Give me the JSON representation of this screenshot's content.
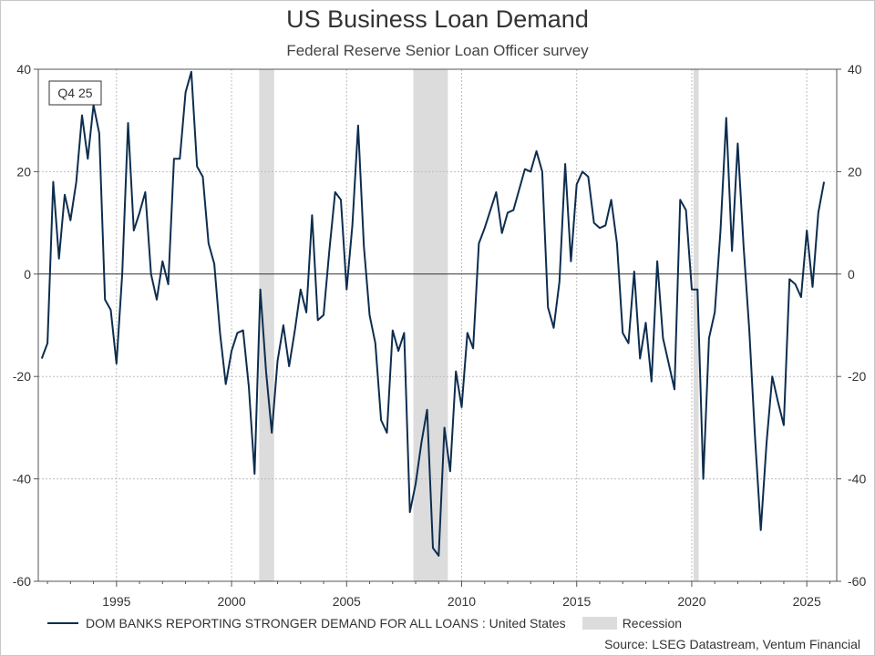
{
  "title": "US Business Loan Demand",
  "subtitle": "Federal Reserve Senior Loan Officer survey",
  "source": "Source: LSEG Datastream, Ventum Financial",
  "chart_data": {
    "type": "line",
    "title": "US Business Loan Demand",
    "subtitle": "Federal Reserve Senior Loan Officer survey",
    "xlabel": "",
    "ylabel": "",
    "xlim": [
      1991.6,
      2026.3
    ],
    "ylim": [
      -60,
      40
    ],
    "x_ticks": [
      1995,
      2000,
      2005,
      2010,
      2015,
      2020,
      2025
    ],
    "y_ticks": [
      40,
      20,
      0,
      -20,
      -40,
      -60
    ],
    "grid": true,
    "dual_y_axis": true,
    "legend_position": "bottom",
    "annotation": "Q4 25",
    "line_color": "#0d2d4f",
    "recession_color": "#dcdcdc",
    "series": [
      {
        "name": "DOM BANKS REPORTING STRONGER DEMAND FOR ALL LOANS : United States",
        "points": [
          [
            1991.75,
            -16.5
          ],
          [
            1992.0,
            -13.5
          ],
          [
            1992.25,
            18.0
          ],
          [
            1992.5,
            3.0
          ],
          [
            1992.75,
            15.5
          ],
          [
            1993.0,
            10.5
          ],
          [
            1993.25,
            18.0
          ],
          [
            1993.5,
            31.0
          ],
          [
            1993.75,
            22.5
          ],
          [
            1994.0,
            33.0
          ],
          [
            1994.25,
            27.5
          ],
          [
            1994.5,
            -5.0
          ],
          [
            1994.75,
            -7.0
          ],
          [
            1995.0,
            -17.5
          ],
          [
            1995.25,
            0.0
          ],
          [
            1995.5,
            29.5
          ],
          [
            1995.75,
            8.5
          ],
          [
            1996.0,
            12.0
          ],
          [
            1996.25,
            16.0
          ],
          [
            1996.5,
            0.0
          ],
          [
            1996.75,
            -5.0
          ],
          [
            1997.0,
            2.5
          ],
          [
            1997.25,
            -2.0
          ],
          [
            1997.5,
            22.5
          ],
          [
            1997.75,
            22.5
          ],
          [
            1998.0,
            35.5
          ],
          [
            1998.25,
            39.5
          ],
          [
            1998.5,
            21.0
          ],
          [
            1998.75,
            19.0
          ],
          [
            1999.0,
            6.0
          ],
          [
            1999.25,
            2.0
          ],
          [
            1999.5,
            -11.5
          ],
          [
            1999.75,
            -21.5
          ],
          [
            2000.0,
            -15.0
          ],
          [
            2000.25,
            -11.5
          ],
          [
            2000.5,
            -11.0
          ],
          [
            2000.75,
            -22.0
          ],
          [
            2001.0,
            -39.0
          ],
          [
            2001.25,
            -3.0
          ],
          [
            2001.5,
            -19.0
          ],
          [
            2001.75,
            -31.0
          ],
          [
            2002.0,
            -17.0
          ],
          [
            2002.25,
            -10.0
          ],
          [
            2002.5,
            -18.0
          ],
          [
            2002.75,
            -11.0
          ],
          [
            2003.0,
            -3.0
          ],
          [
            2003.25,
            -7.5
          ],
          [
            2003.5,
            11.5
          ],
          [
            2003.75,
            -9.0
          ],
          [
            2004.0,
            -8.0
          ],
          [
            2004.25,
            4.5
          ],
          [
            2004.5,
            16.0
          ],
          [
            2004.75,
            14.5
          ],
          [
            2005.0,
            -3.0
          ],
          [
            2005.25,
            9.5
          ],
          [
            2005.5,
            29.0
          ],
          [
            2005.75,
            5.5
          ],
          [
            2006.0,
            -8.0
          ],
          [
            2006.25,
            -13.5
          ],
          [
            2006.5,
            -28.5
          ],
          [
            2006.75,
            -31.0
          ],
          [
            2007.0,
            -11.0
          ],
          [
            2007.25,
            -15.0
          ],
          [
            2007.5,
            -11.5
          ],
          [
            2007.75,
            -46.5
          ],
          [
            2008.0,
            -41.0
          ],
          [
            2008.25,
            -33.0
          ],
          [
            2008.5,
            -26.5
          ],
          [
            2008.75,
            -53.5
          ],
          [
            2009.0,
            -55.0
          ],
          [
            2009.25,
            -30.0
          ],
          [
            2009.5,
            -38.5
          ],
          [
            2009.75,
            -19.0
          ],
          [
            2010.0,
            -26.0
          ],
          [
            2010.25,
            -11.5
          ],
          [
            2010.5,
            -14.5
          ],
          [
            2010.75,
            6.0
          ],
          [
            2011.0,
            9.0
          ],
          [
            2011.25,
            12.5
          ],
          [
            2011.5,
            16.0
          ],
          [
            2011.75,
            8.0
          ],
          [
            2012.0,
            12.0
          ],
          [
            2012.25,
            12.5
          ],
          [
            2012.5,
            16.5
          ],
          [
            2012.75,
            20.5
          ],
          [
            2013.0,
            20.0
          ],
          [
            2013.25,
            24.0
          ],
          [
            2013.5,
            20.0
          ],
          [
            2013.75,
            -6.5
          ],
          [
            2014.0,
            -10.5
          ],
          [
            2014.25,
            -1.5
          ],
          [
            2014.5,
            21.5
          ],
          [
            2014.75,
            2.5
          ],
          [
            2015.0,
            17.5
          ],
          [
            2015.25,
            20.0
          ],
          [
            2015.5,
            19.0
          ],
          [
            2015.75,
            10.0
          ],
          [
            2016.0,
            9.0
          ],
          [
            2016.25,
            9.5
          ],
          [
            2016.5,
            14.5
          ],
          [
            2016.75,
            6.0
          ],
          [
            2017.0,
            -11.5
          ],
          [
            2017.25,
            -13.5
          ],
          [
            2017.5,
            0.5
          ],
          [
            2017.75,
            -16.5
          ],
          [
            2018.0,
            -9.5
          ],
          [
            2018.25,
            -21.0
          ],
          [
            2018.5,
            2.5
          ],
          [
            2018.75,
            -12.5
          ],
          [
            2019.0,
            -17.5
          ],
          [
            2019.25,
            -22.5
          ],
          [
            2019.5,
            14.5
          ],
          [
            2019.75,
            12.5
          ],
          [
            2020.0,
            -3.0
          ],
          [
            2020.25,
            -3.0
          ],
          [
            2020.5,
            -40.0
          ],
          [
            2020.75,
            -12.5
          ],
          [
            2021.0,
            -7.5
          ],
          [
            2021.25,
            8.5
          ],
          [
            2021.5,
            30.5
          ],
          [
            2021.75,
            4.5
          ],
          [
            2022.0,
            25.5
          ],
          [
            2022.25,
            5.5
          ],
          [
            2022.5,
            -11.0
          ],
          [
            2022.75,
            -32.0
          ],
          [
            2023.0,
            -50.0
          ],
          [
            2023.25,
            -33.0
          ],
          [
            2023.5,
            -20.0
          ],
          [
            2023.75,
            -25.0
          ],
          [
            2024.0,
            -29.5
          ],
          [
            2024.25,
            -1.0
          ],
          [
            2024.5,
            -2.0
          ],
          [
            2024.75,
            -4.5
          ],
          [
            2025.0,
            8.5
          ],
          [
            2025.25,
            -2.5
          ],
          [
            2025.5,
            12.0
          ],
          [
            2025.75,
            18.0
          ]
        ]
      }
    ],
    "recessions": [
      {
        "name": "Recession",
        "start": 2001.2,
        "end": 2001.85
      },
      {
        "name": "Recession",
        "start": 2007.9,
        "end": 2009.4
      },
      {
        "name": "Recession",
        "start": 2020.08,
        "end": 2020.3
      }
    ]
  }
}
